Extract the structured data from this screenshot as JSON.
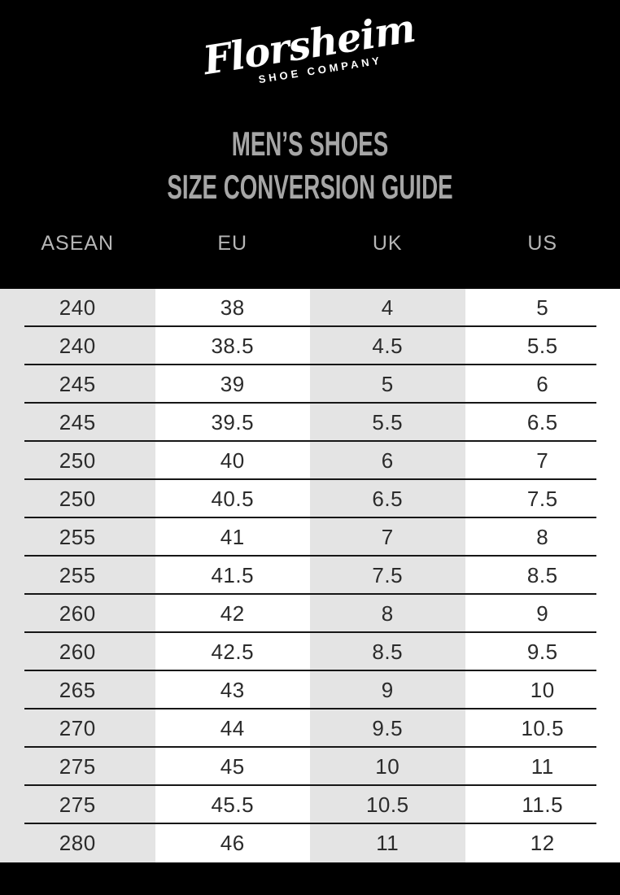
{
  "brand": {
    "script": "Florsheim",
    "subtitle": "SHOE COMPANY"
  },
  "title": {
    "line1": "MEN’S SHOES",
    "line2": "SIZE CONVERSION GUIDE"
  },
  "chart_data": {
    "type": "table",
    "title": "Men’s Shoes Size Conversion Guide",
    "columns": [
      "ASEAN",
      "EU",
      "UK",
      "US"
    ],
    "rows": [
      [
        240,
        38,
        4,
        5
      ],
      [
        240,
        38.5,
        4.5,
        5.5
      ],
      [
        245,
        39,
        5,
        6
      ],
      [
        245,
        39.5,
        5.5,
        6.5
      ],
      [
        250,
        40,
        6,
        7
      ],
      [
        250,
        40.5,
        6.5,
        7.5
      ],
      [
        255,
        41,
        7,
        8
      ],
      [
        255,
        41.5,
        7.5,
        8.5
      ],
      [
        260,
        42,
        8,
        9
      ],
      [
        260,
        42.5,
        8.5,
        9.5
      ],
      [
        265,
        43,
        9,
        10
      ],
      [
        270,
        44,
        9.5,
        10.5
      ],
      [
        275,
        45,
        10,
        11
      ],
      [
        275,
        45.5,
        10.5,
        11.5
      ],
      [
        280,
        46,
        11,
        12
      ]
    ],
    "layout": {
      "shaded_column_indexes": [
        0,
        2
      ],
      "shade_color": "#e4e4e4",
      "row_divider_color": "#161616",
      "grid": "horizontal-dividers-only",
      "legend": "none"
    }
  },
  "colors": {
    "header_bg": "#000000",
    "footer_bg": "#000000",
    "logo_text": "#ffffff",
    "title_text": "#a6a6a6",
    "column_header_text": "#b6b6b6",
    "cell_text": "#2b2b2b",
    "shaded_cell_bg": "#e4e4e4",
    "plain_cell_bg": "#ffffff"
  }
}
